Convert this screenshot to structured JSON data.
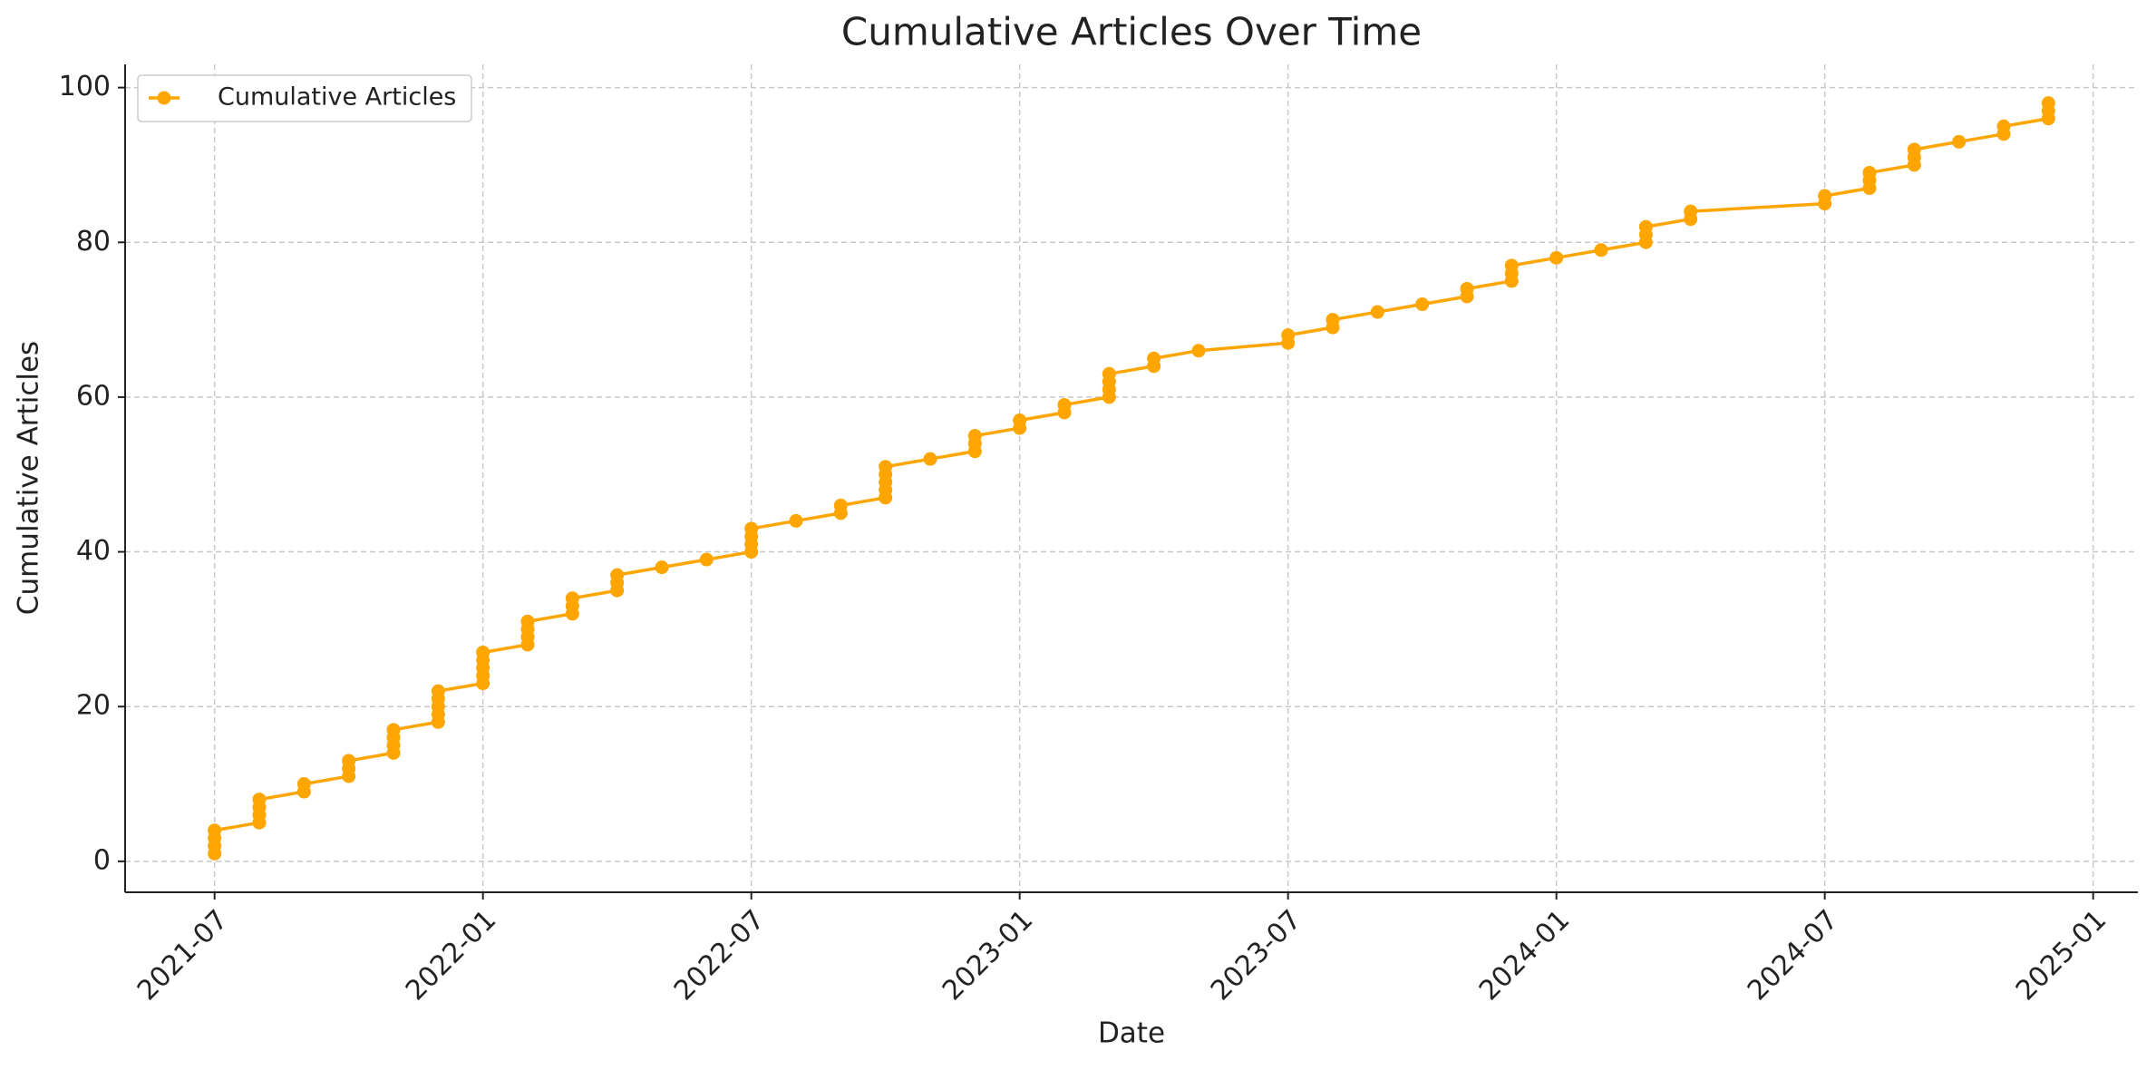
{
  "chart_data": {
    "type": "line",
    "title": "Cumulative Articles Over Time",
    "xlabel": "Date",
    "ylabel": "Cumulative Articles",
    "x": [
      "2021-07",
      "2021-07",
      "2021-07",
      "2021-07",
      "2021-08",
      "2021-08",
      "2021-08",
      "2021-08",
      "2021-09",
      "2021-09",
      "2021-10",
      "2021-10",
      "2021-10",
      "2021-11",
      "2021-11",
      "2021-11",
      "2021-11",
      "2021-12",
      "2021-12",
      "2021-12",
      "2021-12",
      "2021-12",
      "2022-01",
      "2022-01",
      "2022-01",
      "2022-01",
      "2022-01",
      "2022-02",
      "2022-02",
      "2022-02",
      "2022-02",
      "2022-03",
      "2022-03",
      "2022-03",
      "2022-04",
      "2022-04",
      "2022-04",
      "2022-05",
      "2022-06",
      "2022-07",
      "2022-07",
      "2022-07",
      "2022-07",
      "2022-08",
      "2022-09",
      "2022-09",
      "2022-10",
      "2022-10",
      "2022-10",
      "2022-10",
      "2022-10",
      "2022-11",
      "2022-12",
      "2022-12",
      "2022-12",
      "2023-01",
      "2023-01",
      "2023-02",
      "2023-02",
      "2023-03",
      "2023-03",
      "2023-03",
      "2023-03",
      "2023-04",
      "2023-04",
      "2023-05",
      "2023-07",
      "2023-07",
      "2023-08",
      "2023-08",
      "2023-09",
      "2023-10",
      "2023-11",
      "2023-11",
      "2023-12",
      "2023-12",
      "2023-12",
      "2024-01",
      "2024-02",
      "2024-03",
      "2024-03",
      "2024-03",
      "2024-04",
      "2024-04",
      "2024-07",
      "2024-07",
      "2024-08",
      "2024-08",
      "2024-08",
      "2024-09",
      "2024-09",
      "2024-09",
      "2024-10",
      "2024-11",
      "2024-11",
      "2024-12",
      "2024-12",
      "2024-12"
    ],
    "series": [
      {
        "name": "Cumulative Articles",
        "color": "#FFA500",
        "values": [
          1,
          2,
          3,
          4,
          5,
          6,
          7,
          8,
          9,
          10,
          11,
          12,
          13,
          14,
          15,
          16,
          17,
          18,
          19,
          20,
          21,
          22,
          23,
          24,
          25,
          26,
          27,
          28,
          29,
          30,
          31,
          32,
          33,
          34,
          35,
          36,
          37,
          38,
          39,
          40,
          41,
          42,
          43,
          44,
          45,
          46,
          47,
          48,
          49,
          50,
          51,
          52,
          53,
          54,
          55,
          56,
          57,
          58,
          59,
          60,
          61,
          62,
          63,
          64,
          65,
          66,
          67,
          68,
          69,
          70,
          71,
          72,
          73,
          74,
          75,
          76,
          77,
          78,
          79,
          80,
          81,
          82,
          83,
          84,
          85,
          86,
          87,
          88,
          89,
          90,
          91,
          92,
          93,
          94,
          95,
          96,
          97,
          98
        ]
      }
    ],
    "xlim": [
      "2021-05",
      "2025-02"
    ],
    "xticks": [
      "2021-07",
      "2022-01",
      "2022-07",
      "2023-01",
      "2023-07",
      "2024-01",
      "2024-07",
      "2025-01"
    ],
    "ylim": [
      -4,
      103
    ],
    "yticks": [
      0,
      20,
      40,
      60,
      80,
      100
    ],
    "grid": true,
    "legend": "upper left"
  }
}
